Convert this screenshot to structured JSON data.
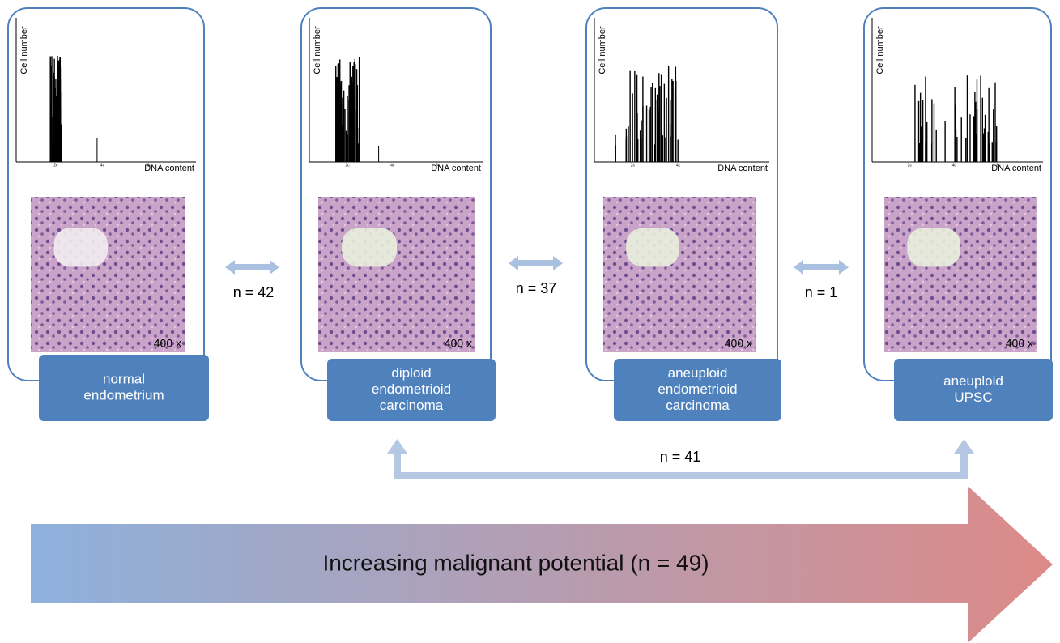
{
  "panels": [
    {
      "histogram": {
        "y_label": "Cell number",
        "x_label": "DNA content",
        "x_ticks": [
          "2c",
          "4c",
          "6c"
        ]
      },
      "magnification": "400 x",
      "label": [
        "normal",
        "endometrium"
      ]
    },
    {
      "histogram": {
        "y_label": "Cell number",
        "x_label": "DNA content",
        "x_ticks": [
          "2c",
          "4c",
          "6c"
        ]
      },
      "magnification": "400 x",
      "label": [
        "diploid",
        "endometrioid",
        "carcinoma"
      ]
    },
    {
      "histogram": {
        "y_label": "Cell number",
        "x_label": "DNA content",
        "x_ticks": [
          "2c",
          "4c"
        ]
      },
      "magnification": "400 x",
      "label": [
        "aneuploid",
        "endometrioid",
        "carcinoma"
      ]
    },
    {
      "histogram": {
        "y_label": "Cell number",
        "x_label": "DNA content",
        "x_ticks": [
          "2c",
          "4c",
          "6c"
        ]
      },
      "magnification": "400 x",
      "label": [
        "aneuploid",
        "UPSC"
      ]
    }
  ],
  "comparisons": [
    "n = 42",
    "n = 37",
    "n = 1",
    "n = 41"
  ],
  "trend": "Increasing malignant potential (n = 49)"
}
